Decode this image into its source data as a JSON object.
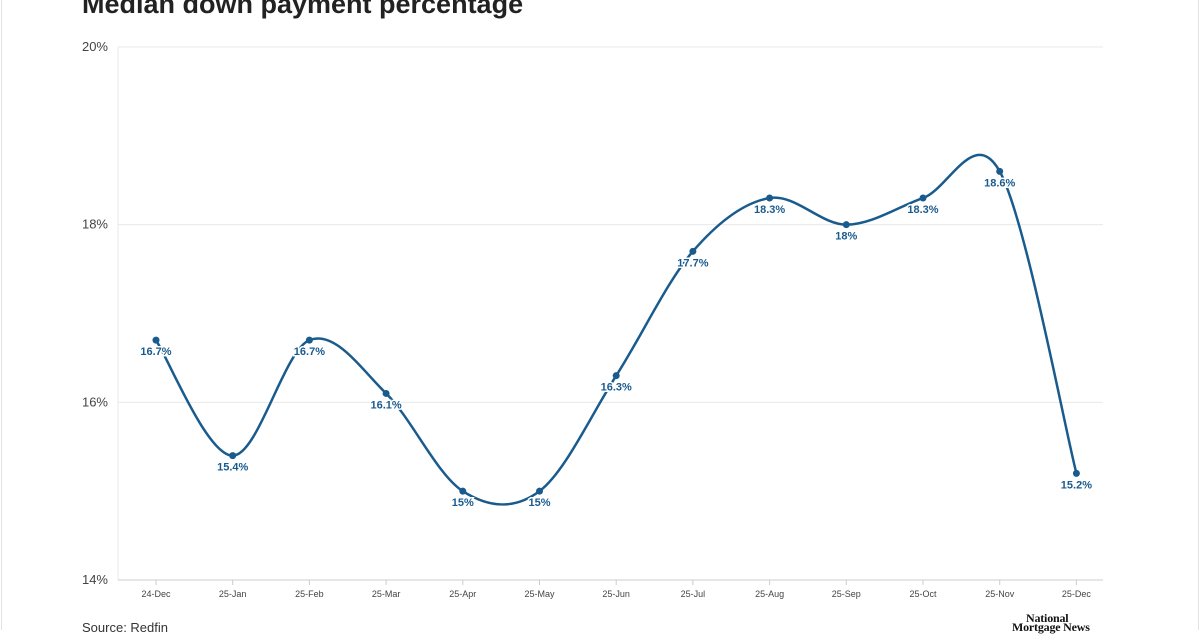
{
  "chart_data": {
    "type": "line",
    "title": "Median down payment percentage",
    "xlabel": "",
    "ylabel": "",
    "categories": [
      "24-Dec",
      "25-Jan",
      "25-Feb",
      "25-Mar",
      "25-Apr",
      "25-May",
      "25-Jun",
      "25-Jul",
      "25-Aug",
      "25-Sep",
      "25-Oct",
      "25-Nov",
      "25-Dec"
    ],
    "series": [
      {
        "values": [
          16.7,
          15.4,
          16.7,
          16.1,
          15,
          15,
          16.3,
          17.7,
          18.3,
          18,
          18.3,
          18.6,
          15.2
        ],
        "data_labels": [
          "16.7%",
          "15.4%",
          "16.7%",
          "16.1%",
          "15%",
          "15%",
          "16.3%",
          "17.7%",
          "18.3%",
          "18%",
          "18.3%",
          "18.6%",
          "15.2%"
        ]
      }
    ],
    "ylim": [
      14,
      20
    ],
    "yticks": [
      14,
      16,
      18,
      20
    ],
    "ytick_labels": [
      "14%",
      "16%",
      "18%",
      "20%"
    ],
    "grid": true,
    "smooth": true,
    "legend": "none"
  },
  "source": "Source: Redfin",
  "logo_text": [
    "National",
    "Mortgage News"
  ],
  "colors": {
    "line": "#1a5b8e",
    "label": "#1a5b8e",
    "grid": "#e8e8e8",
    "axis": "#cccccc",
    "text": "#444444"
  }
}
